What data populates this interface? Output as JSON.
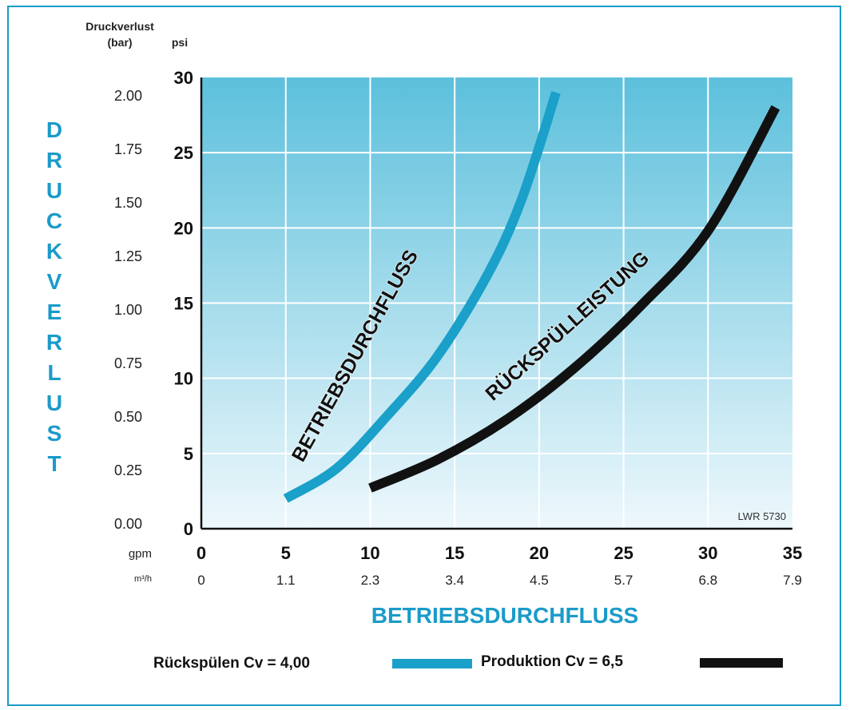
{
  "chart_data": {
    "type": "line",
    "title": "",
    "top_labels": {
      "bar_header_1": "Druckverlust",
      "bar_header_2": "(bar)",
      "psi_header": "psi"
    },
    "ylabel_vertical": "DRUCKVERLUST",
    "xlabel": "BETRIEBSDURCHFLUSS",
    "row_labels": {
      "gpm": "gpm",
      "m3h": "m³/h"
    },
    "xlim_gpm": [
      0,
      35
    ],
    "ylim_psi": [
      0,
      30
    ],
    "grid": true,
    "gpm_ticks": [
      "0",
      "5",
      "10",
      "15",
      "20",
      "25",
      "30",
      "35"
    ],
    "m3h_ticks": [
      "0",
      "1.1",
      "2.3",
      "3.4",
      "4.5",
      "5.7",
      "6.8",
      "7.9"
    ],
    "psi_ticks": [
      "0",
      "5",
      "10",
      "15",
      "20",
      "25",
      "30"
    ],
    "bar_ticks": [
      "0.00",
      "0.25",
      "0.50",
      "0.75",
      "1.00",
      "1.25",
      "1.50",
      "1.75",
      "2.00"
    ],
    "series": [
      {
        "name": "Rückspülen Cv = 4,00",
        "curve_label": "BETRIEBSDURCHFLUSS",
        "color": "#1aa0c9",
        "x": [
          5,
          8,
          11,
          14,
          17,
          19,
          21
        ],
        "y": [
          2,
          4,
          7.5,
          11.5,
          17,
          22,
          29
        ]
      },
      {
        "name": "Produktion Cv = 6,5",
        "curve_label": "RÜCKSPÜLLEISTUNG",
        "color": "#111111",
        "x": [
          10,
          14,
          18,
          22,
          26,
          30,
          34
        ],
        "y": [
          2.7,
          4.6,
          7.2,
          10.6,
          14.8,
          19.8,
          28
        ]
      }
    ],
    "legend_placement": "bottom",
    "annotation": "LWR 5730"
  },
  "colors": {
    "frame": "#1a9bc9",
    "plot_top": "#5cc0dc",
    "plot_bottom": "#eef8fc",
    "grid": "#ffffff",
    "axis_title": "#1a9bc9"
  }
}
